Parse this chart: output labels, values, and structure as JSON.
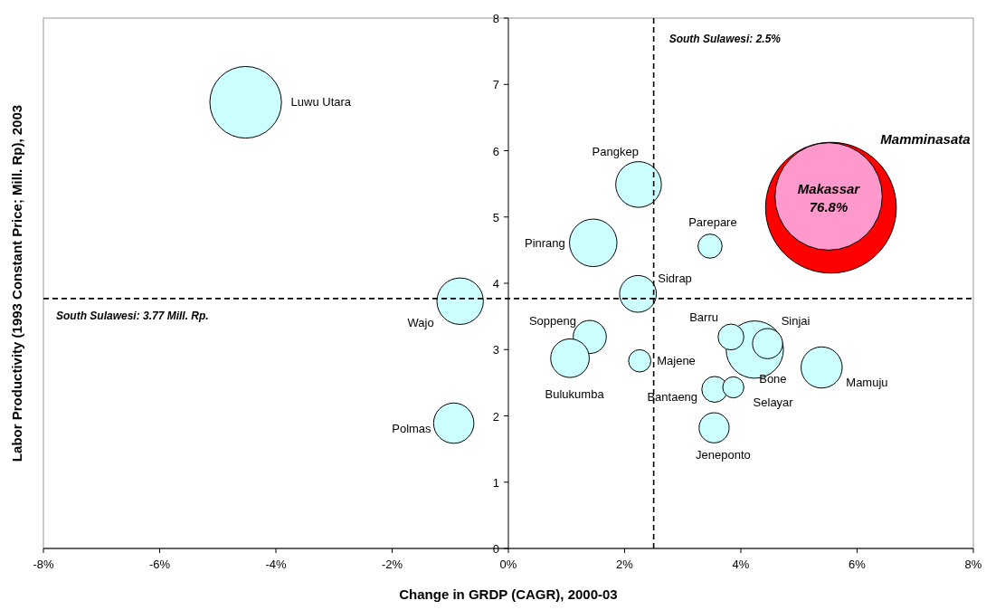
{
  "chart_data": {
    "type": "bubble",
    "xlabel": "Change in GRDP (CAGR), 2000-03",
    "ylabel": "Labor Productivity (1993 Constant Price; Mill. Rp), 2003",
    "xlim": [
      -8,
      8
    ],
    "xticks": [
      {
        "value": -8,
        "label": "-8%"
      },
      {
        "value": -6,
        "label": "-6%"
      },
      {
        "value": -4,
        "label": "-4%"
      },
      {
        "value": -2,
        "label": "-2%"
      },
      {
        "value": 0,
        "label": "0%"
      },
      {
        "value": 2,
        "label": "2%"
      },
      {
        "value": 4,
        "label": "4%"
      },
      {
        "value": 6,
        "label": "6%"
      },
      {
        "value": 8,
        "label": "8%"
      }
    ],
    "ylim": [
      0,
      8
    ],
    "yticks": [
      0,
      1,
      2,
      3,
      4,
      5,
      6,
      7,
      8
    ],
    "grid": false,
    "series": [
      {
        "name": "Luwu Utara",
        "color": "#ccffff",
        "x": [
          -4.52
        ],
        "values": [
          6.73
        ],
        "sizes": [
          0.3
        ]
      },
      {
        "name": "Wajo",
        "color": "#ccffff",
        "x": [
          -0.83
        ],
        "values": [
          3.73
        ],
        "sizes": [
          0.126
        ]
      },
      {
        "name": "Polmas",
        "color": "#ccffff",
        "x": [
          -0.94
        ],
        "values": [
          1.89
        ],
        "sizes": [
          0.095
        ]
      },
      {
        "name": "Pangkep",
        "color": "#ccffff",
        "x": [
          2.24
        ],
        "values": [
          5.49
        ],
        "sizes": [
          0.122
        ]
      },
      {
        "name": "Pinrang",
        "color": "#ccffff",
        "x": [
          1.46
        ],
        "values": [
          4.61
        ],
        "sizes": [
          0.132
        ]
      },
      {
        "name": "Sidrap",
        "color": "#ccffff",
        "x": [
          2.23
        ],
        "values": [
          3.84
        ],
        "sizes": [
          0.079
        ]
      },
      {
        "name": "Parepare",
        "color": "#ccffff",
        "x": [
          3.47
        ],
        "values": [
          4.56
        ],
        "sizes": [
          0.034
        ]
      },
      {
        "name": "Soppeng",
        "color": "#ccffff",
        "x": [
          1.4
        ],
        "values": [
          3.19
        ],
        "sizes": [
          0.064
        ]
      },
      {
        "name": "Bulukumba",
        "color": "#ccffff",
        "x": [
          1.06
        ],
        "values": [
          2.87
        ],
        "sizes": [
          0.087
        ]
      },
      {
        "name": "Majene",
        "color": "#ccffff",
        "x": [
          2.26
        ],
        "values": [
          2.83
        ],
        "sizes": [
          0.029
        ]
      },
      {
        "name": "Bone",
        "color": "#ccffff",
        "x": [
          4.24
        ],
        "values": [
          3.0
        ],
        "sizes": [
          0.192
        ]
      },
      {
        "name": "Barru",
        "color": "#ccffff",
        "x": [
          3.83
        ],
        "values": [
          3.19
        ],
        "sizes": [
          0.039
        ]
      },
      {
        "name": "Sinjai",
        "color": "#ccffff",
        "x": [
          4.46
        ],
        "values": [
          3.09
        ],
        "sizes": [
          0.053
        ]
      },
      {
        "name": "Bantaeng",
        "color": "#ccffff",
        "x": [
          3.55
        ],
        "values": [
          2.4
        ],
        "sizes": [
          0.039
        ]
      },
      {
        "name": "Selayar",
        "color": "#ccffff",
        "x": [
          3.87
        ],
        "values": [
          2.43
        ],
        "sizes": [
          0.026
        ]
      },
      {
        "name": "Jeneponto",
        "color": "#ccffff",
        "x": [
          3.54
        ],
        "values": [
          1.82
        ],
        "sizes": [
          0.053
        ]
      },
      {
        "name": "Mamuju",
        "color": "#ccffff",
        "x": [
          5.39
        ],
        "values": [
          2.73
        ],
        "sizes": [
          0.099
        ]
      },
      {
        "name": "Mamminasata",
        "color": "#ff0000",
        "x": [
          5.55
        ],
        "values": [
          5.14
        ],
        "sizes": [
          1
        ]
      },
      {
        "name": "Makassar",
        "color": "#ff99cc",
        "x": [
          5.51
        ],
        "values": [
          5.31
        ],
        "sizes": [
          0.673
        ]
      }
    ],
    "annotations": [
      {
        "text": "76.8%",
        "x": 5.51,
        "y": 5.31
      }
    ],
    "ref_lines": [
      {
        "axis": "y",
        "value": 3.77,
        "label": "South Sulawesi: 3.77 Mill. Rp.",
        "line_style": "dashed"
      },
      {
        "axis": "x",
        "value": 2.5,
        "label": "South Sulawesi: 2.5%",
        "line_style": "dashed"
      }
    ]
  }
}
